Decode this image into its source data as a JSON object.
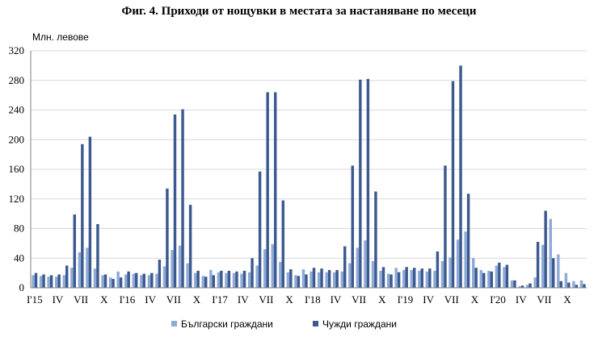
{
  "chart_data": {
    "type": "bar",
    "title": "Фиг. 4. Приходи от нощувки в местата за настаняване по месеци",
    "ylabel": "Млн. левове",
    "ylim": [
      0,
      320
    ],
    "y_ticks": [
      0,
      40,
      80,
      120,
      160,
      200,
      240,
      280,
      320
    ],
    "x_tick_labels": [
      "I'15",
      "IV",
      "VII",
      "X",
      "I'16",
      "IV",
      "VII",
      "X",
      "I'17",
      "IV",
      "VII",
      "X",
      "I'18",
      "IV",
      "VII",
      "X",
      "I'19",
      "IV",
      "VII",
      "X",
      "I'20",
      "IV",
      "VII",
      "X"
    ],
    "categories": [
      "2015-01",
      "2015-02",
      "2015-03",
      "2015-04",
      "2015-05",
      "2015-06",
      "2015-07",
      "2015-08",
      "2015-09",
      "2015-10",
      "2015-11",
      "2015-12",
      "2016-01",
      "2016-02",
      "2016-03",
      "2016-04",
      "2016-05",
      "2016-06",
      "2016-07",
      "2016-08",
      "2016-09",
      "2016-10",
      "2016-11",
      "2016-12",
      "2017-01",
      "2017-02",
      "2017-03",
      "2017-04",
      "2017-05",
      "2017-06",
      "2017-07",
      "2017-08",
      "2017-09",
      "2017-10",
      "2017-11",
      "2017-12",
      "2018-01",
      "2018-02",
      "2018-03",
      "2018-04",
      "2018-05",
      "2018-06",
      "2018-07",
      "2018-08",
      "2018-09",
      "2018-10",
      "2018-11",
      "2018-12",
      "2019-01",
      "2019-02",
      "2019-03",
      "2019-04",
      "2019-05",
      "2019-06",
      "2019-07",
      "2019-08",
      "2019-09",
      "2019-10",
      "2019-11",
      "2019-12",
      "2020-01",
      "2020-02",
      "2020-03",
      "2020-04",
      "2020-05",
      "2020-06",
      "2020-07",
      "2020-08",
      "2020-09",
      "2020-10",
      "2020-11",
      "2020-12"
    ],
    "series": [
      {
        "name": "Български граждани",
        "color": "#8eaad6",
        "values": [
          17,
          16,
          15,
          15,
          17,
          27,
          48,
          54,
          26,
          17,
          14,
          22,
          18,
          19,
          17,
          17,
          19,
          29,
          51,
          57,
          33,
          20,
          16,
          24,
          21,
          20,
          20,
          19,
          21,
          30,
          52,
          59,
          35,
          21,
          17,
          25,
          22,
          21,
          21,
          21,
          22,
          33,
          54,
          64,
          36,
          23,
          19,
          27,
          24,
          24,
          23,
          22,
          23,
          36,
          41,
          65,
          76,
          40,
          24,
          23,
          30,
          28,
          10,
          2,
          4,
          14,
          58,
          93,
          45,
          20,
          9,
          10
        ]
      },
      {
        "name": "Чужди граждани",
        "color": "#3c5a8f",
        "values": [
          20,
          18,
          17,
          18,
          30,
          99,
          194,
          204,
          86,
          18,
          12,
          14,
          22,
          20,
          19,
          20,
          38,
          134,
          234,
          241,
          112,
          23,
          15,
          17,
          23,
          23,
          22,
          23,
          40,
          157,
          264,
          264,
          118,
          25,
          16,
          18,
          27,
          26,
          24,
          24,
          56,
          165,
          281,
          282,
          130,
          28,
          18,
          21,
          28,
          27,
          26,
          26,
          49,
          165,
          279,
          300,
          127,
          27,
          20,
          22,
          34,
          31,
          10,
          3,
          6,
          62,
          104,
          40,
          9,
          7,
          4,
          5
        ]
      }
    ],
    "legend_position": "bottom"
  }
}
